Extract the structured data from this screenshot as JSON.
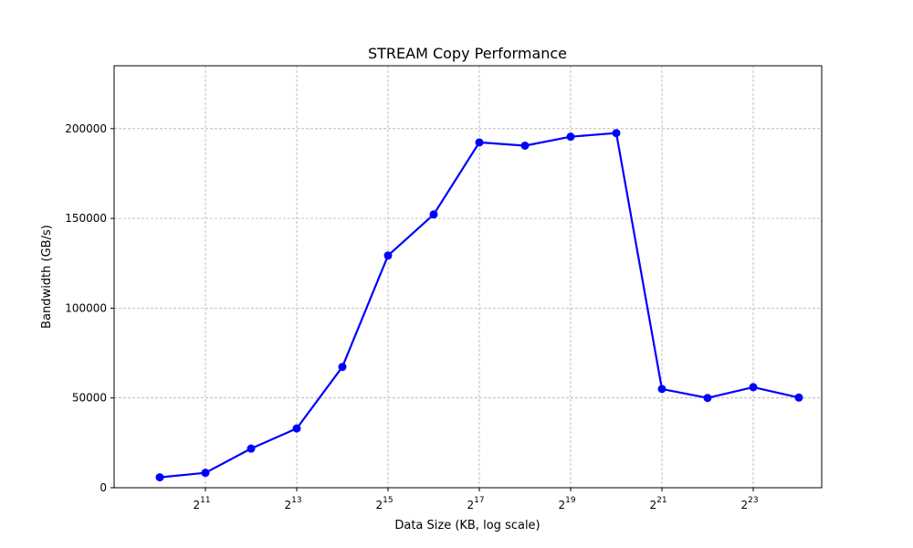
{
  "chart_data": {
    "type": "line",
    "title": "STREAM Copy Performance",
    "xlabel": "Data Size (KB, log scale)",
    "ylabel": "Bandwidth (GB/s)",
    "xscale": "log2",
    "xlim": [
      512,
      23726566
    ],
    "ylim": [
      0,
      235000
    ],
    "xticks": [
      2048,
      8192,
      32768,
      131072,
      524288,
      2097152,
      8388608
    ],
    "xtick_labels": [
      {
        "base": "2",
        "exp": "11"
      },
      {
        "base": "2",
        "exp": "13"
      },
      {
        "base": "2",
        "exp": "15"
      },
      {
        "base": "2",
        "exp": "17"
      },
      {
        "base": "2",
        "exp": "19"
      },
      {
        "base": "2",
        "exp": "21"
      },
      {
        "base": "2",
        "exp": "23"
      }
    ],
    "yticks": [
      0,
      50000,
      100000,
      150000,
      200000
    ],
    "ytick_labels": [
      "0",
      "50000",
      "100000",
      "150000",
      "200000"
    ],
    "grid": true,
    "series": [
      {
        "color": "#0000ff",
        "marker": "circle",
        "x": [
          1024,
          2048,
          4096,
          8192,
          16384,
          32768,
          65536,
          131072,
          262144,
          524288,
          1048576,
          2097152,
          4194304,
          8388608,
          16777216
        ],
        "y": [
          5800,
          8300,
          21800,
          33000,
          67300,
          129300,
          152200,
          192300,
          190500,
          195500,
          197500,
          55000,
          50000,
          56000,
          50200
        ]
      }
    ]
  }
}
